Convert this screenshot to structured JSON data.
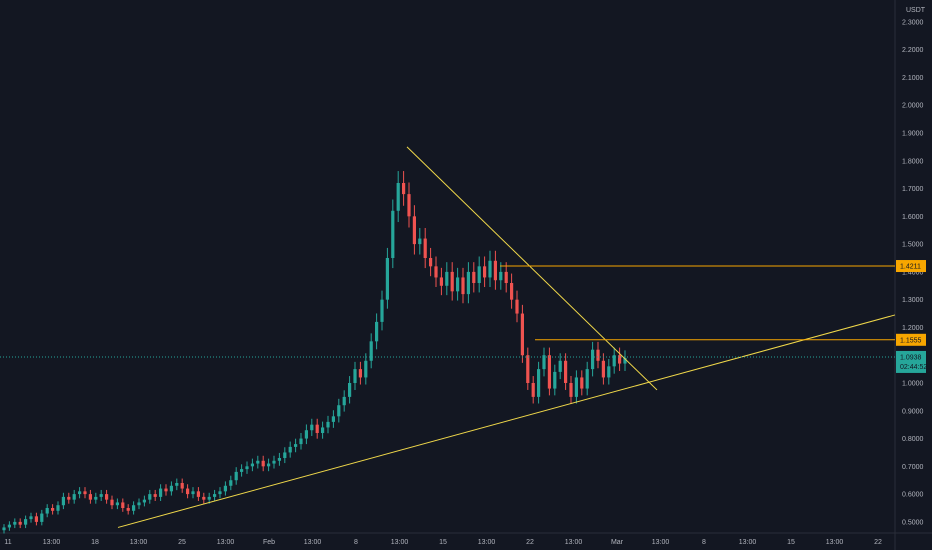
{
  "chart_data": {
    "type": "candlestick",
    "currency_label": "USDT",
    "y_ticks": [
      "0.5000",
      "0.6000",
      "0.7000",
      "0.8000",
      "0.9000",
      "1.0000",
      "1.1000",
      "1.2000",
      "1.3000",
      "1.4000",
      "1.5000",
      "1.6000",
      "1.7000",
      "1.8000",
      "1.9000",
      "2.0000",
      "2.1000",
      "2.2000",
      "2.3000"
    ],
    "y_tick_values": [
      0.5,
      0.6,
      0.7,
      0.8,
      0.9,
      1.0,
      1.1,
      1.2,
      1.3,
      1.4,
      1.5,
      1.6,
      1.7,
      1.8,
      1.9,
      2.0,
      2.1,
      2.2,
      2.3
    ],
    "ylim": [
      0.46,
      2.35
    ],
    "x_tick_labels": [
      "11",
      "13:00",
      "18",
      "13:00",
      "25",
      "13:00",
      "Feb",
      "13:00",
      "8",
      "13:00",
      "15",
      "13:00",
      "22",
      "13:00",
      "Mar",
      "13:00",
      "8",
      "13:00",
      "15",
      "13:00",
      "22"
    ],
    "horizontal_levels": [
      {
        "value": 1.4211,
        "label": "1.4211",
        "color": "#f7a600"
      },
      {
        "value": 1.1555,
        "label": "1.1555",
        "color": "#f7a600"
      }
    ],
    "current_price": {
      "value": 1.0938,
      "label": "1.0938",
      "countdown": "02:44:52",
      "color": "#26a69a"
    },
    "trendlines_color": "#f0d84a",
    "up_color": "#26a69a",
    "down_color": "#ef5350",
    "candle_closes": [
      0.48,
      0.49,
      0.5,
      0.49,
      0.51,
      0.52,
      0.5,
      0.53,
      0.55,
      0.54,
      0.56,
      0.59,
      0.58,
      0.6,
      0.61,
      0.6,
      0.58,
      0.59,
      0.6,
      0.58,
      0.56,
      0.57,
      0.55,
      0.54,
      0.56,
      0.57,
      0.58,
      0.6,
      0.59,
      0.62,
      0.61,
      0.63,
      0.64,
      0.62,
      0.6,
      0.61,
      0.59,
      0.58,
      0.59,
      0.6,
      0.61,
      0.63,
      0.65,
      0.68,
      0.69,
      0.7,
      0.71,
      0.72,
      0.7,
      0.71,
      0.72,
      0.73,
      0.75,
      0.77,
      0.78,
      0.8,
      0.83,
      0.85,
      0.82,
      0.84,
      0.86,
      0.88,
      0.92,
      0.95,
      1.0,
      1.05,
      1.02,
      1.08,
      1.15,
      1.22,
      1.3,
      1.45,
      1.62,
      1.72,
      1.68,
      1.6,
      1.5,
      1.52,
      1.45,
      1.42,
      1.38,
      1.35,
      1.4,
      1.33,
      1.38,
      1.32,
      1.4,
      1.36,
      1.42,
      1.38,
      1.44,
      1.37,
      1.4,
      1.36,
      1.3,
      1.25,
      1.1,
      1.0,
      0.95,
      1.05,
      1.1,
      0.98,
      1.04,
      1.08,
      1.0,
      0.95,
      1.02,
      0.98,
      1.05,
      1.12,
      1.08,
      1.02,
      1.06,
      1.1,
      1.07,
      1.09
    ]
  }
}
